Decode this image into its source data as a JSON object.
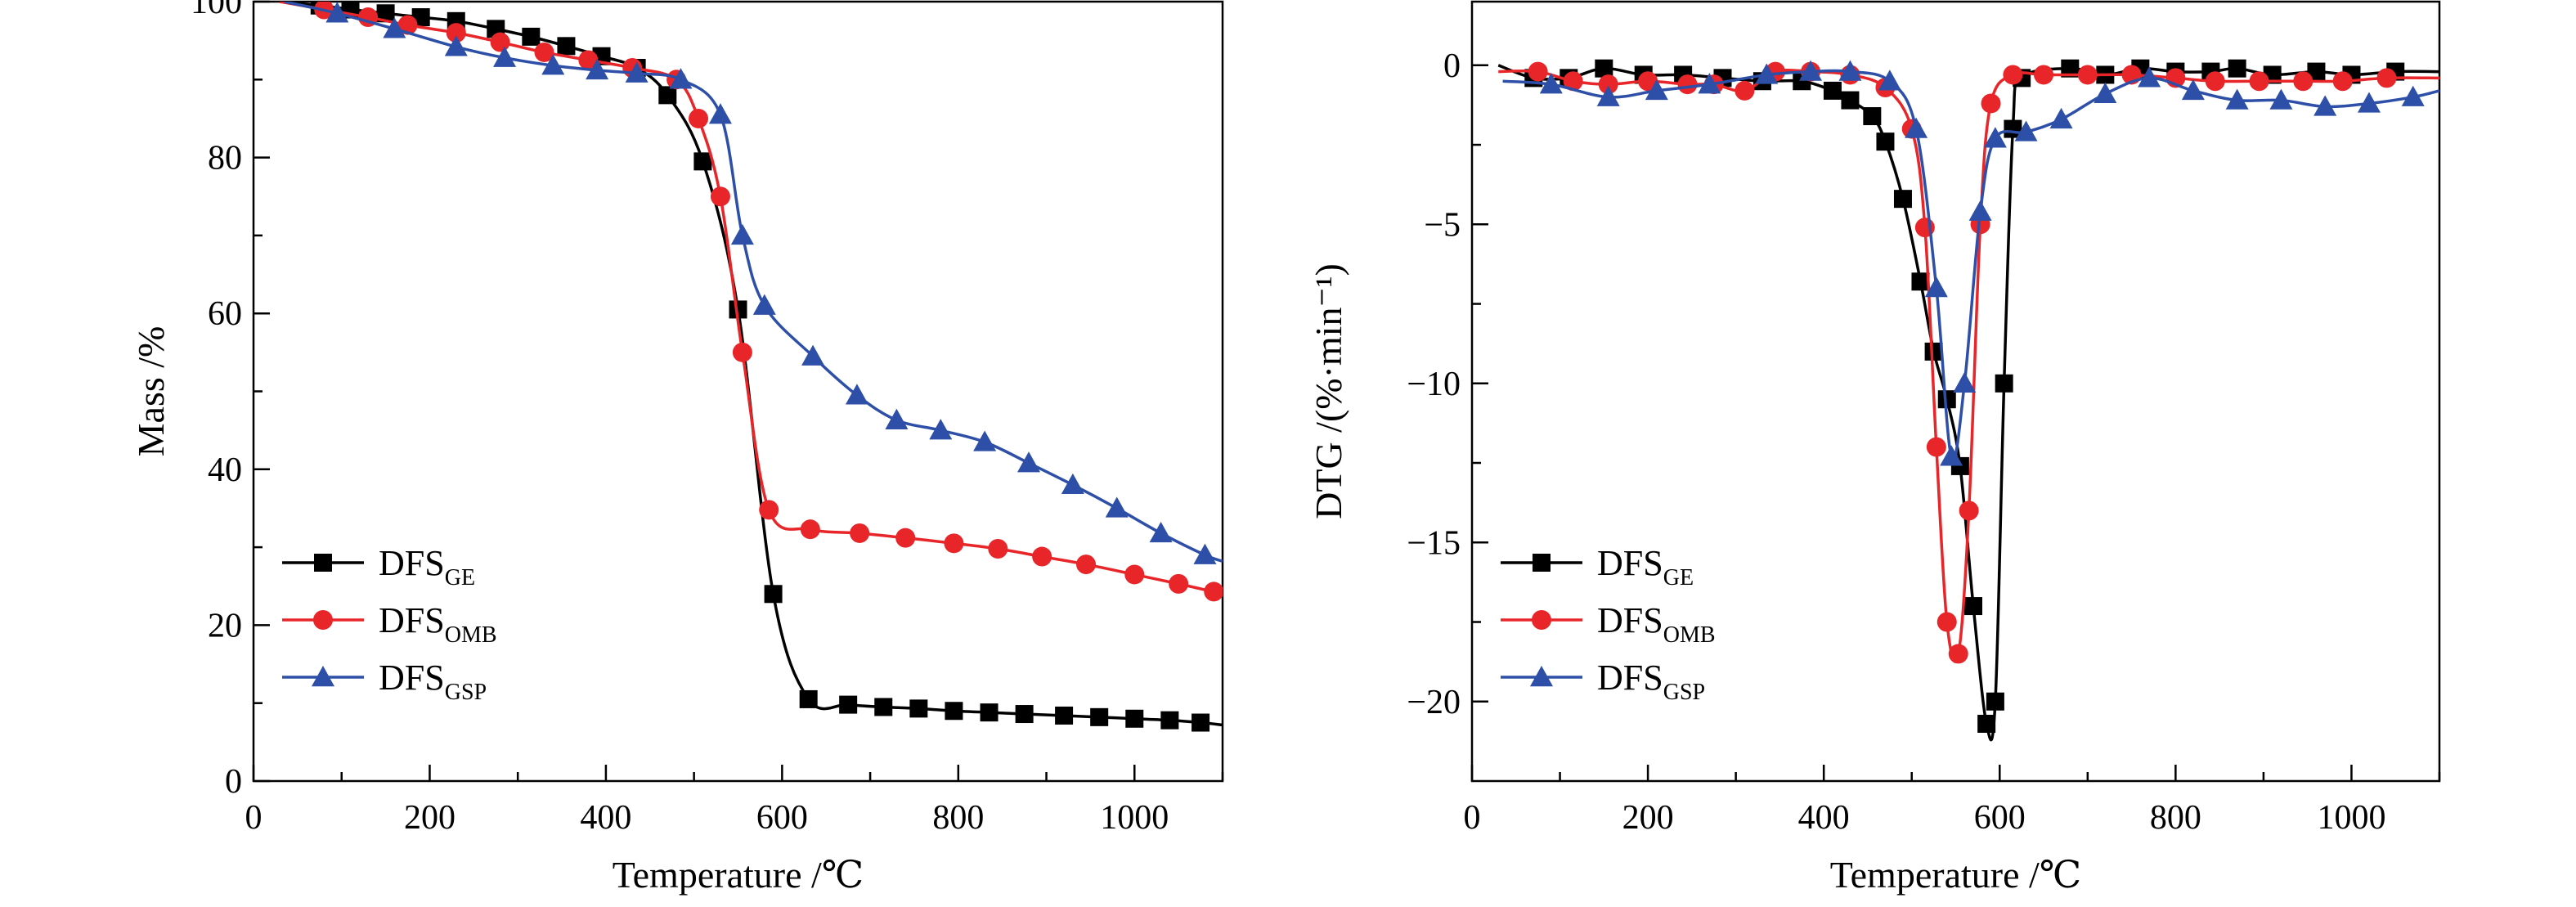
{
  "colors": {
    "DFS_GE": "#000000",
    "DFS_OMB": "#e8262a",
    "DFS_GSP": "#2e4fa8"
  },
  "chart_data": [
    {
      "type": "line",
      "xlabel": "Temperature /℃",
      "ylabel": "Mass /%",
      "xlim": [
        0,
        1100
      ],
      "ylim": [
        0,
        100
      ],
      "xticks": [
        "0",
        "200",
        "400",
        "600",
        "800",
        "1000"
      ],
      "yticks": [
        "0",
        "20",
        "40",
        "60",
        "80",
        "100"
      ],
      "grid": false,
      "legend_position": "bottom-left",
      "series": [
        {
          "name": "DFS",
          "subscript": "GE",
          "marker": "square",
          "color": "#000000",
          "points": [
            [
              30,
              100
            ],
            [
              75,
              99.5
            ],
            [
              110,
              99
            ],
            [
              150,
              98.5
            ],
            [
              190,
              98
            ],
            [
              230,
              97.5
            ],
            [
              275,
              96.5
            ],
            [
              315,
              95.5
            ],
            [
              355,
              94.3
            ],
            [
              395,
              93
            ],
            [
              435,
              91.5
            ],
            [
              470,
              88
            ],
            [
              510,
              79.5
            ],
            [
              550,
              60.5
            ],
            [
              590,
              24
            ],
            [
              630,
              10.5
            ],
            [
              675,
              9.8
            ],
            [
              715,
              9.5
            ],
            [
              755,
              9.3
            ],
            [
              795,
              9
            ],
            [
              835,
              8.8
            ],
            [
              875,
              8.6
            ],
            [
              920,
              8.4
            ],
            [
              960,
              8.2
            ],
            [
              1000,
              8
            ],
            [
              1040,
              7.8
            ],
            [
              1075,
              7.5
            ],
            [
              1100,
              7.2
            ]
          ]
        },
        {
          "name": "DFS",
          "subscript": "OMB",
          "marker": "circle",
          "color": "#e8262a",
          "points": [
            [
              30,
              100
            ],
            [
              80,
              99
            ],
            [
              130,
              98
            ],
            [
              175,
              97
            ],
            [
              230,
              96
            ],
            [
              280,
              94.8
            ],
            [
              330,
              93.5
            ],
            [
              380,
              92.5
            ],
            [
              430,
              91.5
            ],
            [
              480,
              90
            ],
            [
              505,
              85
            ],
            [
              530,
              75
            ],
            [
              555,
              55
            ],
            [
              585,
              34.8
            ],
            [
              632,
              32.3
            ],
            [
              688,
              31.8
            ],
            [
              740,
              31.2
            ],
            [
              795,
              30.5
            ],
            [
              845,
              29.8
            ],
            [
              895,
              28.8
            ],
            [
              945,
              27.8
            ],
            [
              1000,
              26.5
            ],
            [
              1050,
              25.3
            ],
            [
              1090,
              24.3
            ],
            [
              1100,
              24.2
            ]
          ]
        },
        {
          "name": "DFS",
          "subscript": "GSP",
          "marker": "triangle",
          "color": "#2e4fa8",
          "points": [
            [
              35,
              100
            ],
            [
              95,
              98.5
            ],
            [
              160,
              96.5
            ],
            [
              230,
              94.2
            ],
            [
              285,
              92.8
            ],
            [
              340,
              91.8
            ],
            [
              390,
              91.2
            ],
            [
              435,
              90.8
            ],
            [
              485,
              90
            ],
            [
              530,
              85.5
            ],
            [
              555,
              70
            ],
            [
              580,
              61
            ],
            [
              635,
              54.5
            ],
            [
              685,
              49.5
            ],
            [
              730,
              46.3
            ],
            [
              780,
              45
            ],
            [
              830,
              43.5
            ],
            [
              880,
              40.8
            ],
            [
              930,
              38
            ],
            [
              980,
              35
            ],
            [
              1030,
              31.8
            ],
            [
              1080,
              29
            ],
            [
              1100,
              28.2
            ]
          ]
        }
      ]
    },
    {
      "type": "line",
      "xlabel": "Temperature /℃",
      "ylabel": "DTG /(%·min⁻¹)",
      "xlim": [
        0,
        1100
      ],
      "ylim": [
        -22.5,
        2
      ],
      "xticks": [
        "0",
        "200",
        "400",
        "600",
        "800",
        "1000"
      ],
      "yticks": [
        "0",
        "−5",
        "−10",
        "−15",
        "−20"
      ],
      "grid": false,
      "legend_position": "bottom-left",
      "series": [
        {
          "name": "DFS",
          "subscript": "GE",
          "marker": "square",
          "color": "#000000",
          "points": [
            [
              30,
              0
            ],
            [
              70,
              -0.4
            ],
            [
              110,
              -0.4
            ],
            [
              150,
              -0.1
            ],
            [
              195,
              -0.3
            ],
            [
              240,
              -0.3
            ],
            [
              285,
              -0.4
            ],
            [
              330,
              -0.5
            ],
            [
              375,
              -0.5
            ],
            [
              410,
              -0.8
            ],
            [
              430,
              -1.1
            ],
            [
              455,
              -1.6
            ],
            [
              470,
              -2.4
            ],
            [
              490,
              -4.2
            ],
            [
              510,
              -6.8
            ],
            [
              525,
              -9
            ],
            [
              540,
              -10.5
            ],
            [
              555,
              -12.6
            ],
            [
              570,
              -17
            ],
            [
              585,
              -20.7
            ],
            [
              595,
              -20
            ],
            [
              605,
              -10
            ],
            [
              615,
              -2
            ],
            [
              625,
              -0.4
            ],
            [
              680,
              -0.1
            ],
            [
              720,
              -0.3
            ],
            [
              760,
              -0.1
            ],
            [
              800,
              -0.2
            ],
            [
              840,
              -0.2
            ],
            [
              870,
              -0.1
            ],
            [
              910,
              -0.3
            ],
            [
              960,
              -0.2
            ],
            [
              1000,
              -0.3
            ],
            [
              1050,
              -0.2
            ],
            [
              1100,
              -0.2
            ]
          ]
        },
        {
          "name": "DFS",
          "subscript": "OMB",
          "marker": "circle",
          "color": "#e8262a",
          "points": [
            [
              30,
              -0.2
            ],
            [
              75,
              -0.2
            ],
            [
              115,
              -0.5
            ],
            [
              155,
              -0.6
            ],
            [
              200,
              -0.5
            ],
            [
              245,
              -0.6
            ],
            [
              275,
              -0.6
            ],
            [
              310,
              -0.8
            ],
            [
              345,
              -0.2
            ],
            [
              385,
              -0.2
            ],
            [
              430,
              -0.3
            ],
            [
              470,
              -0.7
            ],
            [
              500,
              -2
            ],
            [
              515,
              -5.1
            ],
            [
              528,
              -12
            ],
            [
              540,
              -17.5
            ],
            [
              553,
              -18.5
            ],
            [
              565,
              -14
            ],
            [
              578,
              -5
            ],
            [
              590,
              -1.2
            ],
            [
              615,
              -0.3
            ],
            [
              650,
              -0.3
            ],
            [
              700,
              -0.3
            ],
            [
              750,
              -0.3
            ],
            [
              800,
              -0.4
            ],
            [
              845,
              -0.5
            ],
            [
              895,
              -0.5
            ],
            [
              945,
              -0.5
            ],
            [
              990,
              -0.5
            ],
            [
              1040,
              -0.4
            ],
            [
              1100,
              -0.4
            ]
          ]
        },
        {
          "name": "DFS",
          "subscript": "GSP",
          "marker": "triangle",
          "color": "#2e4fa8",
          "points": [
            [
              35,
              -0.5
            ],
            [
              90,
              -0.6
            ],
            [
              155,
              -1
            ],
            [
              210,
              -0.8
            ],
            [
              270,
              -0.6
            ],
            [
              335,
              -0.3
            ],
            [
              385,
              -0.2
            ],
            [
              430,
              -0.2
            ],
            [
              475,
              -0.5
            ],
            [
              505,
              -2
            ],
            [
              528,
              -7
            ],
            [
              545,
              -12.3
            ],
            [
              560,
              -10
            ],
            [
              578,
              -4.6
            ],
            [
              595,
              -2.3
            ],
            [
              630,
              -2.1
            ],
            [
              670,
              -1.7
            ],
            [
              720,
              -0.9
            ],
            [
              770,
              -0.4
            ],
            [
              820,
              -0.8
            ],
            [
              870,
              -1.1
            ],
            [
              920,
              -1.1
            ],
            [
              970,
              -1.3
            ],
            [
              1020,
              -1.2
            ],
            [
              1070,
              -1
            ],
            [
              1100,
              -0.8
            ]
          ]
        }
      ]
    }
  ]
}
